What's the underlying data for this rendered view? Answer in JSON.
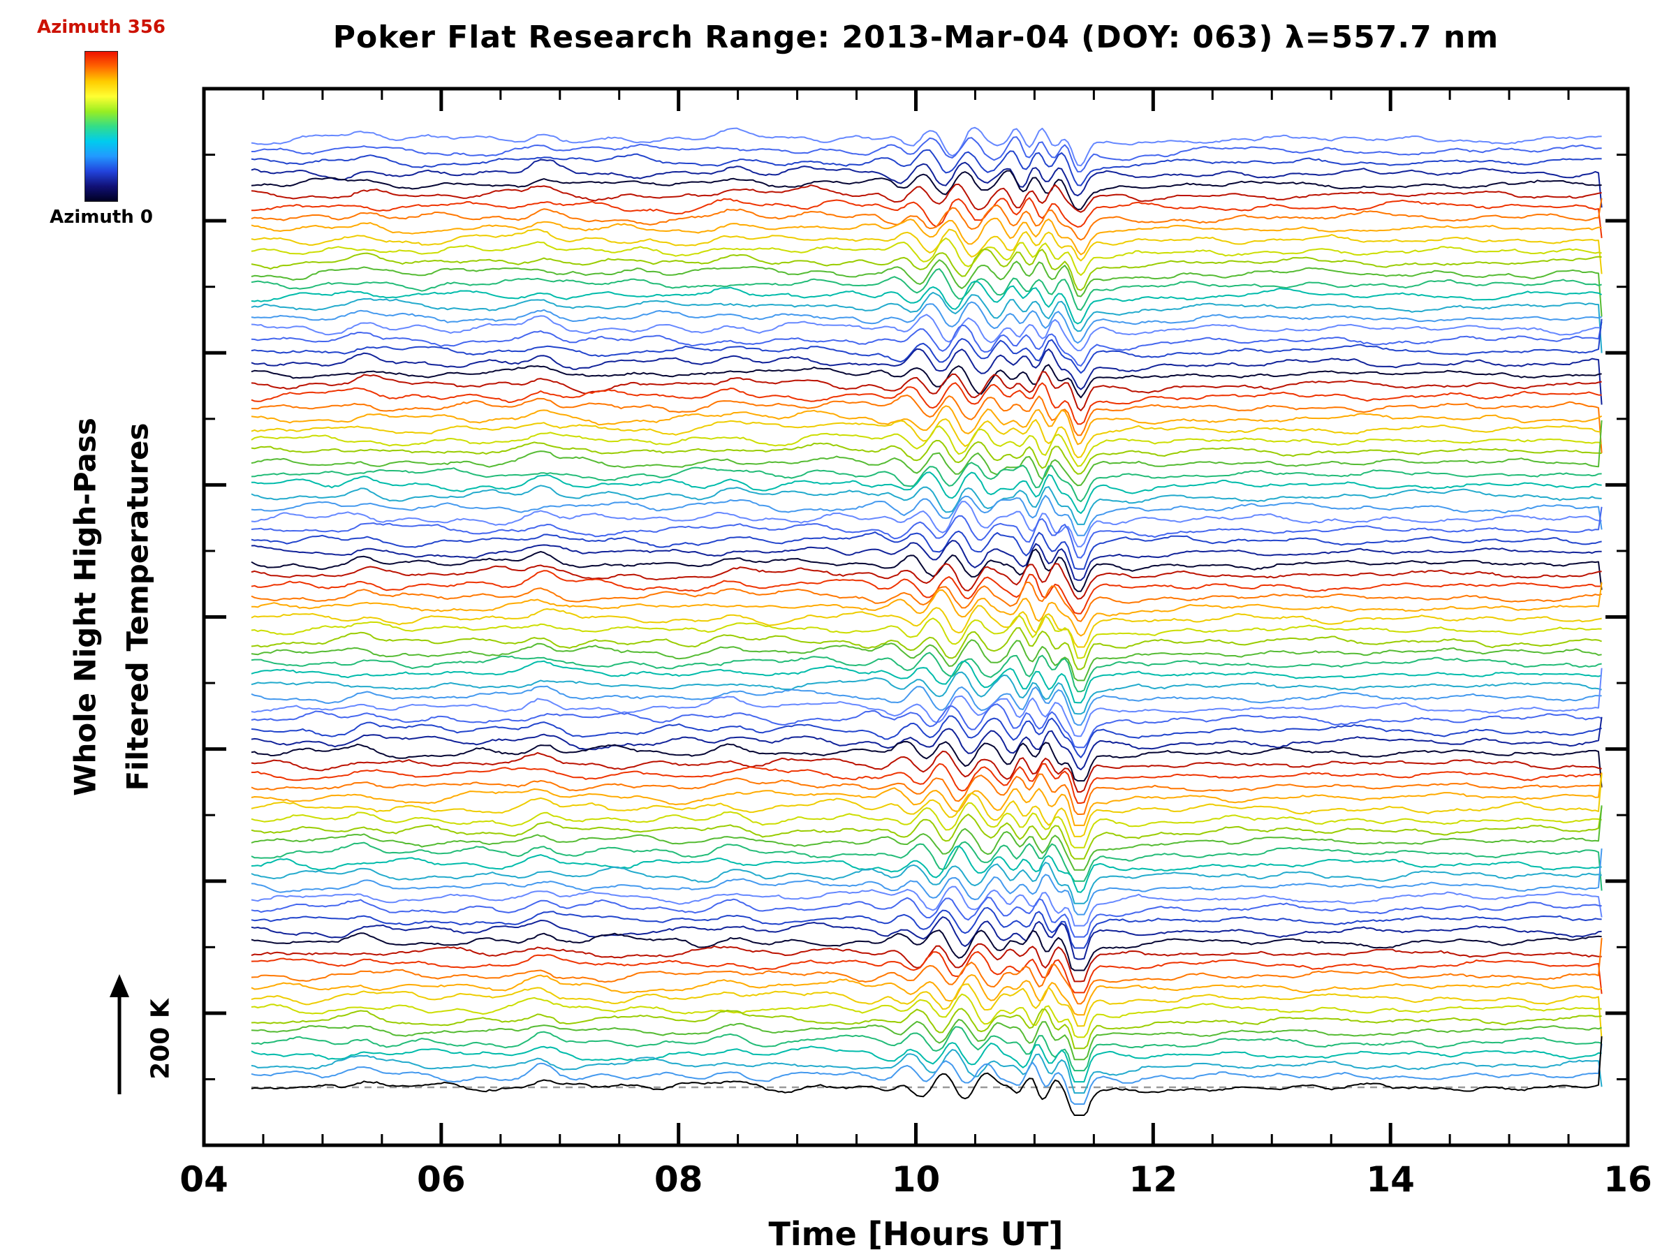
{
  "page": {
    "background": "#ffffff"
  },
  "chart_data": {
    "type": "line",
    "title": "Poker Flat Research Range: 2013-Mar-04 (DOY: 063) λ=557.7 nm",
    "xlabel": "Time [Hours UT]",
    "ylabel_lines": [
      "Whole Night High-Pass",
      "Filtered Temperatures"
    ],
    "xlim": [
      4,
      16
    ],
    "x_ticks": [
      {
        "value": 4,
        "label": "04"
      },
      {
        "value": 6,
        "label": "06"
      },
      {
        "value": 8,
        "label": "08"
      },
      {
        "value": 10,
        "label": "10"
      },
      {
        "value": 12,
        "label": "12"
      },
      {
        "value": 14,
        "label": "14"
      },
      {
        "value": 16,
        "label": "16"
      }
    ],
    "x_minor_step": 0.5,
    "x_data_range": [
      4.4,
      15.78
    ],
    "grid": false,
    "legend": false,
    "colorbar": {
      "top_label": "Azimuth 356",
      "bottom_label": "Azimuth 0",
      "top_label_color": "#cc1100",
      "bottom_label_color": "#000000",
      "colors_top_to_bottom": [
        "#ee1100",
        "#ff6600",
        "#ffcc00",
        "#ffff33",
        "#99ee22",
        "#33dd88",
        "#00ccee",
        "#2299ff",
        "#2244dd",
        "#111177",
        "#000022"
      ]
    },
    "scale_bar_label": "200 K",
    "series": {
      "n_traces": 86,
      "azimuth_range": [
        0,
        356
      ],
      "stack_order": "offset waterfall, one trace per azimuth bin, colored by azimuth",
      "color_cycle_top_to_bottom": [
        "#6688ff",
        "#4466ee",
        "#2244cc",
        "#112299",
        "#050533",
        "#bb1100",
        "#ee3300",
        "#ff7700",
        "#ffaa00",
        "#eecc00",
        "#ccdd00",
        "#99cc00",
        "#55bb33",
        "#22bb77",
        "#00bbaa",
        "#22aacc",
        "#4499ee"
      ],
      "cycle_repeats": 5,
      "last_trace_color": "#000000",
      "baseline_dashed_color": "#999999",
      "seed": 987,
      "noise_amp": 2.1,
      "features": {
        "bumps": [
          {
            "x": 5.35,
            "amp": 6,
            "w": 0.13
          },
          {
            "x": 6.85,
            "amp": 10,
            "w": 0.14
          },
          {
            "x": 8.45,
            "amp": 7,
            "w": 0.17
          },
          {
            "x": 9.2,
            "amp": 4,
            "w": 0.3
          }
        ],
        "wave_packets": [
          {
            "center": 10.35,
            "width": 0.5,
            "amp": 18,
            "period": 0.36
          },
          {
            "center": 11.05,
            "width": 0.28,
            "amp": 14,
            "period": 0.22
          }
        ],
        "dip": {
          "x": 11.38,
          "amp": -28,
          "w": 0.08
        },
        "post_event_calm_after": 11.9
      }
    }
  }
}
